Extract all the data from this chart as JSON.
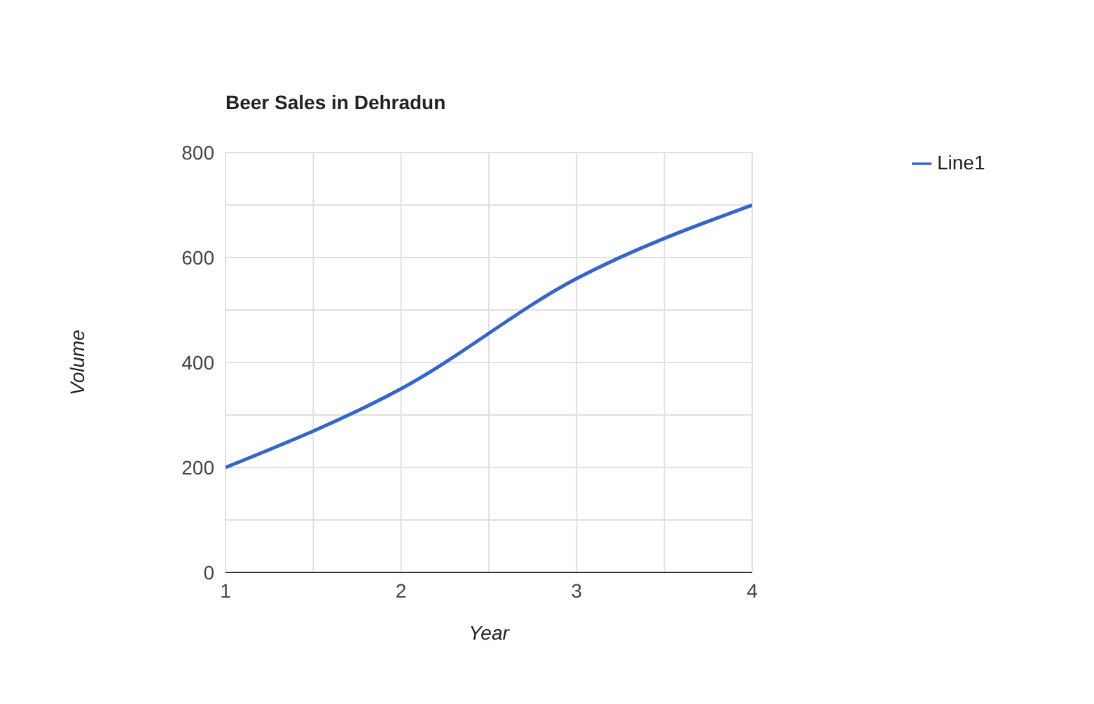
{
  "chart_data": {
    "type": "line",
    "title": "Beer Sales in Dehradun",
    "xlabel": "Year",
    "ylabel": "Volume",
    "x": [
      1,
      2,
      3,
      4
    ],
    "series": [
      {
        "name": "Line1",
        "color": "#3366cc",
        "values": [
          200,
          350,
          560,
          700
        ]
      }
    ],
    "xlim": [
      1,
      4
    ],
    "xticks": [
      1,
      {
        "value": 1.5,
        "label": null
      },
      2,
      {
        "value": 2.5,
        "label": null
      },
      3,
      {
        "value": 3.5,
        "label": null
      },
      4
    ],
    "ylim": [
      0,
      800
    ],
    "yticks": [
      0,
      {
        "value": 100,
        "label": null
      },
      200,
      {
        "value": 300,
        "label": null
      },
      400,
      {
        "value": 500,
        "label": null
      },
      600,
      {
        "value": 700,
        "label": null
      },
      800
    ],
    "grid": true,
    "legend": "top right",
    "marker": "none",
    "line_style": "solid"
  }
}
